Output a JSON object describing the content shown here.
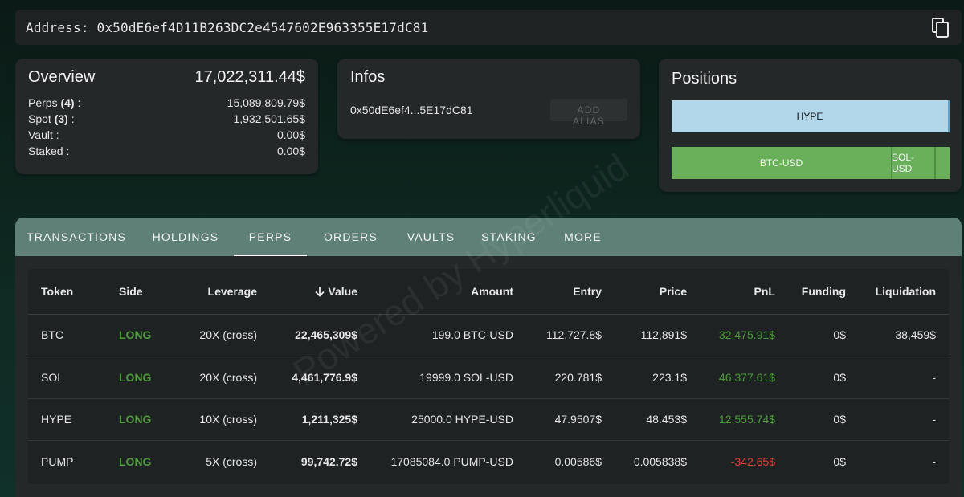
{
  "address_bar": {
    "label": "Address: 0x50dE6ef4D11B263DC2e4547602E963355E17dC81",
    "copy_icon": "copy-icon"
  },
  "overview": {
    "title": "Overview",
    "total": "17,022,311.44$",
    "rows": [
      {
        "label": "Perps",
        "count": "(4)",
        "suffix": " :",
        "value": "15,089,809.79$"
      },
      {
        "label": "Spot",
        "count": "(3)",
        "suffix": " :",
        "value": "1,932,501.65$"
      },
      {
        "label": "Vault :",
        "count": "",
        "suffix": "",
        "value": "0.00$"
      },
      {
        "label": "Staked :",
        "count": "",
        "suffix": "",
        "value": "0.00$"
      }
    ]
  },
  "infos": {
    "title": "Infos",
    "short_address": "0x50dE6ef4...5E17dC81",
    "add_alias_label": "ADD ALIAS"
  },
  "positions": {
    "title": "Positions",
    "spot_bar": {
      "label": "HYPE"
    },
    "perp_bar": {
      "btc_label": "BTC-USD",
      "sol_label": "SOL-USD"
    }
  },
  "tabs": [
    "TRANSACTIONS",
    "HOLDINGS",
    "PERPS",
    "ORDERS",
    "VAULTS",
    "STAKING",
    "MORE"
  ],
  "active_tab": "PERPS",
  "table": {
    "headers": {
      "token": "Token",
      "side": "Side",
      "leverage": "Leverage",
      "value": "Value",
      "amount": "Amount",
      "entry": "Entry",
      "price": "Price",
      "pnl": "PnL",
      "funding": "Funding",
      "liquidation": "Liquidation"
    },
    "sort_icon": "arrow-down-icon",
    "rows": [
      {
        "token": "BTC",
        "side": "LONG",
        "leverage": "20X (cross)",
        "value": "22,465,309$",
        "amount": "199.0 BTC-USD",
        "entry": "112,727.8$",
        "price": "112,891$",
        "pnl": "32,475.91$",
        "funding": "0$",
        "liquidation": "38,459$"
      },
      {
        "token": "SOL",
        "side": "LONG",
        "leverage": "20X (cross)",
        "value": "4,461,776.9$",
        "amount": "19999.0 SOL-USD",
        "entry": "220.781$",
        "price": "223.1$",
        "pnl": "46,377.61$",
        "funding": "0$",
        "liquidation": "-"
      },
      {
        "token": "HYPE",
        "side": "LONG",
        "leverage": "10X (cross)",
        "value": "1,211,325$",
        "amount": "25000.0 HYPE-USD",
        "entry": "47.9507$",
        "price": "48.453$",
        "pnl": "12,555.74$",
        "funding": "0$",
        "liquidation": "-"
      },
      {
        "token": "PUMP",
        "side": "LONG",
        "leverage": "5X (cross)",
        "value": "99,742.72$",
        "amount": "17085084.0 PUMP-USD",
        "entry": "0.00586$",
        "price": "0.005838$",
        "pnl": "-342.65$",
        "funding": "0$",
        "liquidation": "-"
      }
    ]
  },
  "watermark": "Powered by Hyperliquid",
  "colors": {
    "tab_bar": "#5e8076",
    "long": "#4f9a3f",
    "pnl_positive": "#4c9b3a",
    "pnl_negative": "#e0403a",
    "spot_bar": "#b3d7ea",
    "perp_bar": "#6ab05b"
  }
}
